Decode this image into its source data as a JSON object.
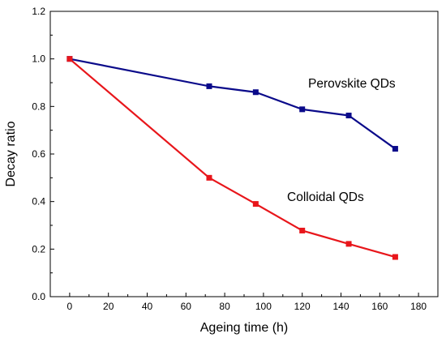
{
  "chart_data": {
    "type": "line",
    "title": "",
    "xlabel": "Ageing time (h)",
    "ylabel": "Decay ratio",
    "xlim": [
      -10,
      190
    ],
    "ylim": [
      0.0,
      1.2
    ],
    "xticks": [
      0,
      20,
      40,
      60,
      80,
      100,
      120,
      140,
      160,
      180
    ],
    "yticks": [
      0.0,
      0.2,
      0.4,
      0.6,
      0.8,
      1.0,
      1.2
    ],
    "ytick_labels": [
      "0.0",
      "0.2",
      "0.4",
      "0.6",
      "0.8",
      "1.0",
      "1.2"
    ],
    "grid": false,
    "legend": "none",
    "series": [
      {
        "name": "Perovskite QDs",
        "color": "#0a0a8a",
        "marker": "square",
        "x": [
          0,
          72,
          96,
          120,
          144,
          168
        ],
        "y": [
          1.0,
          0.885,
          0.86,
          0.788,
          0.762,
          0.622
        ]
      },
      {
        "name": "Colloidal QDs",
        "color": "#e8161b",
        "marker": "square",
        "x": [
          0,
          72,
          96,
          120,
          144,
          168
        ],
        "y": [
          1.0,
          0.5,
          0.39,
          0.278,
          0.222,
          0.167
        ]
      }
    ]
  }
}
